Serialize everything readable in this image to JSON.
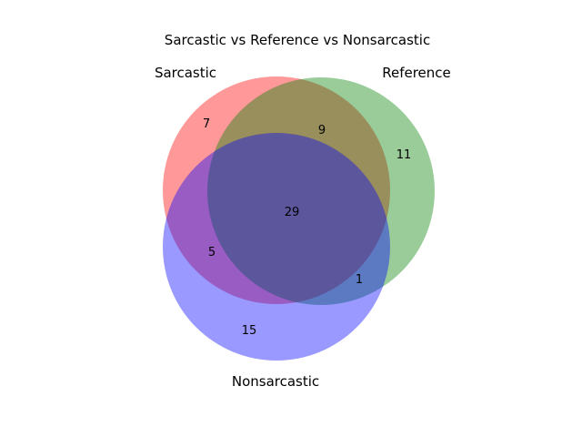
{
  "chart_data": {
    "type": "venn3",
    "title": "Sarcastic vs Reference vs Nonsarcastic",
    "sets": [
      {
        "name": "Sarcastic",
        "color": "#ff0000"
      },
      {
        "name": "Reference",
        "color": "#008000"
      },
      {
        "name": "Nonsarcastic",
        "color": "#0000ff"
      }
    ],
    "regions": {
      "only_sarcastic": "7",
      "only_reference": "11",
      "sarcastic_and_reference": "9",
      "only_nonsarcastic": "15",
      "sarcastic_and_nonsarcastic": "5",
      "reference_and_nonsarcastic": "1",
      "all_three": "29"
    },
    "fill_opacity": 0.4
  }
}
